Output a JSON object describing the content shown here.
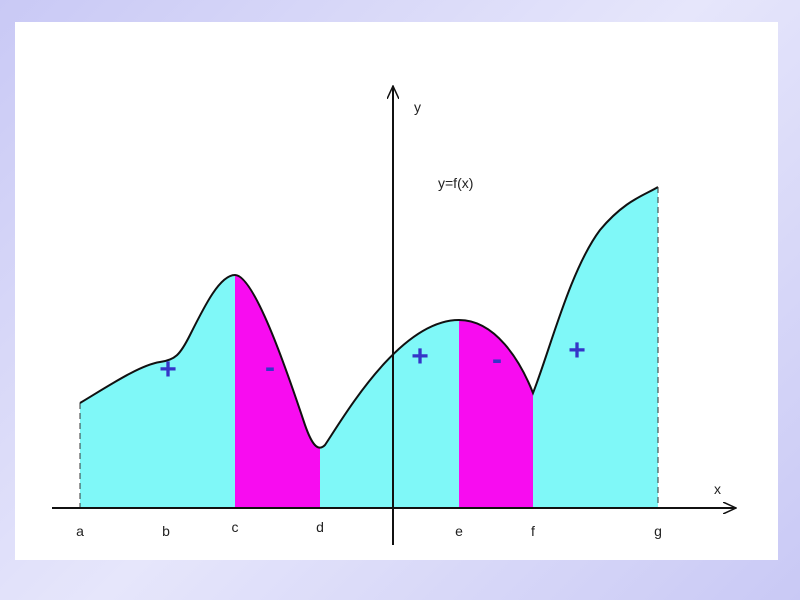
{
  "axes": {
    "x": "x",
    "y": "y"
  },
  "function_label": "y=f(x)",
  "points": [
    "a",
    "b",
    "c",
    "d",
    "e",
    "f",
    "g"
  ],
  "signs": [
    "+",
    "-",
    "+",
    "-",
    "+"
  ]
}
